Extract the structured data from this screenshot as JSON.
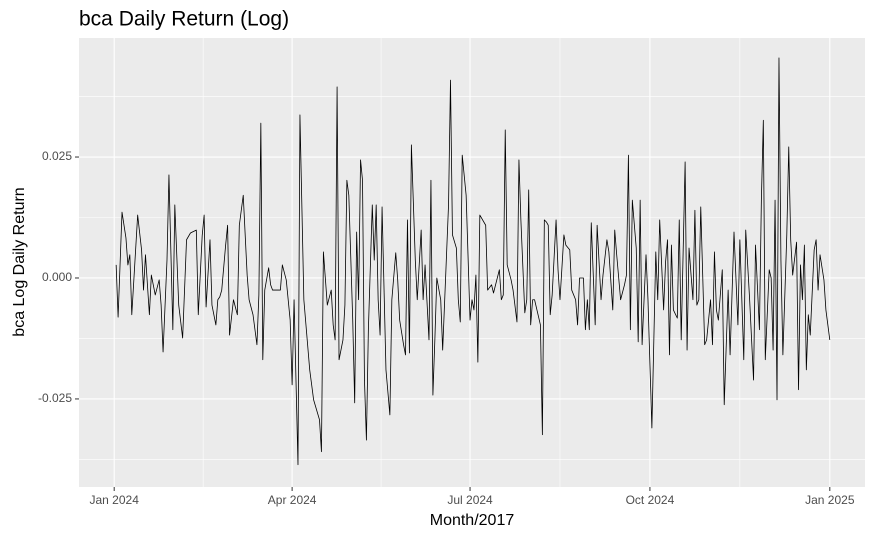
{
  "chart_data": {
    "type": "line",
    "title": "bca Daily Return (Log)",
    "x_label": "Month/2017",
    "y_label": "bca Log Daily Return",
    "color": "#000000",
    "grid": true,
    "xlim": [
      -18,
      384
    ],
    "ylim": [
      -0.0432,
      0.0496
    ],
    "xticks": [
      {
        "value": 0,
        "label": "Jan 2024"
      },
      {
        "value": 91,
        "label": "Apr 2024"
      },
      {
        "value": 182,
        "label": "Jul 2024"
      },
      {
        "value": 274,
        "label": "Oct 2024"
      },
      {
        "value": 366,
        "label": "Jan 2025"
      }
    ],
    "yticks": [
      -0.025,
      {
        "value": 0,
        "label": "0.000"
      },
      0.025
    ],
    "x": [
      1,
      2,
      4,
      6,
      7,
      8,
      9,
      12,
      14,
      15,
      16,
      18,
      19,
      21,
      23,
      24,
      25,
      27,
      28,
      30,
      31,
      33,
      35,
      37,
      39,
      40,
      42,
      43,
      45,
      46,
      47,
      49,
      50,
      52,
      53,
      54,
      55,
      57,
      58,
      59,
      61,
      63,
      64,
      66,
      68,
      69,
      71,
      73,
      74,
      75,
      76,
      77,
      79,
      80,
      81,
      83,
      85,
      86,
      88,
      90,
      91,
      92,
      94,
      95,
      97,
      100,
      102,
      105,
      106,
      107,
      109,
      111,
      112,
      113,
      114,
      115,
      117,
      118,
      119,
      120,
      122,
      123,
      124,
      125,
      126,
      127,
      128,
      129,
      130,
      132,
      133,
      134,
      135,
      136,
      137,
      139,
      141,
      142,
      144,
      145,
      146,
      148,
      149,
      150,
      151,
      152,
      154,
      155,
      157,
      158,
      159,
      161,
      162,
      163,
      164,
      165,
      167,
      168,
      171,
      172,
      173,
      175,
      176,
      177,
      178,
      180,
      182,
      183,
      184,
      185,
      186,
      187,
      190,
      191,
      193,
      194,
      197,
      198,
      199,
      200,
      201,
      203,
      204,
      206,
      207,
      208,
      210,
      211,
      212,
      213,
      214,
      215,
      218,
      219,
      220,
      221,
      222,
      223,
      224,
      226,
      227,
      228,
      230,
      231,
      233,
      234,
      236,
      237,
      238,
      240,
      241,
      242,
      243,
      244,
      246,
      247,
      249,
      250,
      252,
      253,
      255,
      256,
      257,
      259,
      261,
      262,
      263,
      264,
      265,
      267,
      268,
      269,
      270,
      272,
      273,
      275,
      277,
      278,
      279,
      281,
      282,
      283,
      284,
      285,
      286,
      288,
      289,
      290,
      292,
      293,
      294,
      296,
      297,
      298,
      299,
      300,
      302,
      303,
      305,
      306,
      307,
      308,
      309,
      311,
      312,
      314,
      315,
      317,
      319,
      320,
      322,
      323,
      325,
      327,
      328,
      330,
      331,
      332,
      333,
      335,
      336,
      337,
      338,
      339,
      340,
      341,
      342,
      344,
      345,
      346,
      347,
      349,
      350,
      351,
      352,
      353,
      354,
      355,
      356,
      358,
      359,
      360,
      361,
      363,
      364,
      366
    ],
    "values": [
      0.0027,
      -0.0081,
      0.0136,
      0.0083,
      0.0027,
      0.0048,
      -0.0076,
      0.013,
      0.0058,
      -0.0025,
      0.0048,
      -0.0076,
      0.0006,
      -0.0035,
      -0.0004,
      -0.0056,
      -0.0153,
      0.0037,
      0.0213,
      -0.0107,
      0.0151,
      -0.0056,
      -0.0124,
      0.0079,
      0.0093,
      0.0095,
      0.0099,
      -0.0076,
      0.0087,
      0.013,
      -0.006,
      0.0079,
      -0.0056,
      -0.0097,
      -0.0045,
      -0.0039,
      -0.0025,
      0.0068,
      0.0109,
      -0.0118,
      -0.0045,
      -0.0076,
      0.0109,
      0.0171,
      0.0006,
      -0.0045,
      -0.0076,
      -0.0138,
      -0.0035,
      0.032,
      -0.0169,
      -0.0025,
      0.0021,
      -0.0014,
      -0.0025,
      -0.0025,
      -0.0025,
      0.0027,
      -0.0004,
      -0.0087,
      -0.0221,
      -0.0045,
      -0.0386,
      0.0337,
      -0.0045,
      -0.019,
      -0.0252,
      -0.0293,
      -0.0359,
      0.0054,
      -0.0056,
      -0.0025,
      -0.0097,
      -0.0128,
      0.0395,
      -0.0169,
      -0.0128,
      -0.0056,
      0.0202,
      0.0171,
      -0.0087,
      -0.0258,
      0.0095,
      -0.0045,
      0.0244,
      0.0202,
      -0.0211,
      -0.0335,
      -0.0107,
      0.0151,
      0.0037,
      0.0151,
      -0.0045,
      -0.0118,
      0.0147,
      -0.019,
      -0.0283,
      -0.0045,
      0.0052,
      -0.0004,
      -0.0087,
      -0.0138,
      -0.0159,
      0.012,
      -0.0155,
      0.0275,
      0.0037,
      -0.0045,
      0.0099,
      -0.0045,
      0.0027,
      -0.0128,
      0.0202,
      -0.0242,
      -0.0128,
      0,
      -0.0045,
      -0.0149,
      0.0151,
      0.0409,
      0.0089,
      0.0062,
      -0.0045,
      -0.0091,
      0.0254,
      0.0171,
      -0.0087,
      -0.0045,
      -0.0066,
      0.0006,
      -0.0174,
      0.013,
      0.0109,
      -0.0025,
      -0.0014,
      -0.0031,
      0.0017,
      -0.0045,
      -0.0035,
      0.0306,
      0.0027,
      -0.0004,
      -0.0025,
      -0.0091,
      0.0244,
      0.012,
      -0.0072,
      -0.0045,
      0.0182,
      -0.0097,
      -0.0045,
      -0.0045,
      -0.0097,
      -0.0324,
      0.012,
      0.0116,
      0.0109,
      -0.0076,
      -0.0035,
      0.012,
      0.0017,
      -0.0045,
      0.0089,
      0.0068,
      0.0058,
      -0.0025,
      -0.0045,
      -0.0097,
      0,
      0,
      -0.0107,
      -0.0045,
      -0.0107,
      0.0114,
      -0.0097,
      0.0109,
      -0.0045,
      0.0006,
      0.0079,
      0.0054,
      -0.0066,
      0.0099,
      0.0048,
      -0.0045,
      -0.0014,
      0.0006,
      0.0254,
      -0.0107,
      0.0161,
      0.0062,
      -0.0132,
      0.0161,
      -0.0138,
      0.0048,
      -0.0045,
      -0.031,
      0.0054,
      -0.0045,
      0.012,
      -0.0066,
      0.0033,
      0.0079,
      -0.0159,
      0.0068,
      -0.0066,
      -0.0083,
      0.012,
      -0.0128,
      0.024,
      -0.0149,
      0.0062,
      -0.0045,
      0.014,
      -0.0056,
      -0.0045,
      0.0147,
      -0.0138,
      -0.0128,
      -0.0045,
      -0.0138,
      0.0054,
      -0.0066,
      -0.0087,
      0.0017,
      -0.0262,
      -0.0025,
      -0.0159,
      0.0095,
      -0.0097,
      0.0079,
      -0.0169,
      0.0099,
      -0.0045,
      -0.0211,
      0.0068,
      -0.0107,
      0.0161,
      0.0326,
      -0.0169,
      0.0017,
      0,
      -0.0149,
      0.0161,
      -0.0252,
      0.0455,
      0.0037,
      -0.0159,
      0.0089,
      0.0271,
      0.0079,
      0.0006,
      0.0074,
      -0.0231,
      0.0027,
      -0.0045,
      0.0068,
      -0.019,
      -0.0076,
      -0.0118,
      0.0058,
      0.0079,
      -0.0025,
      0.0048,
      -0.0004,
      -0.0066,
      -0.0128
    ]
  }
}
